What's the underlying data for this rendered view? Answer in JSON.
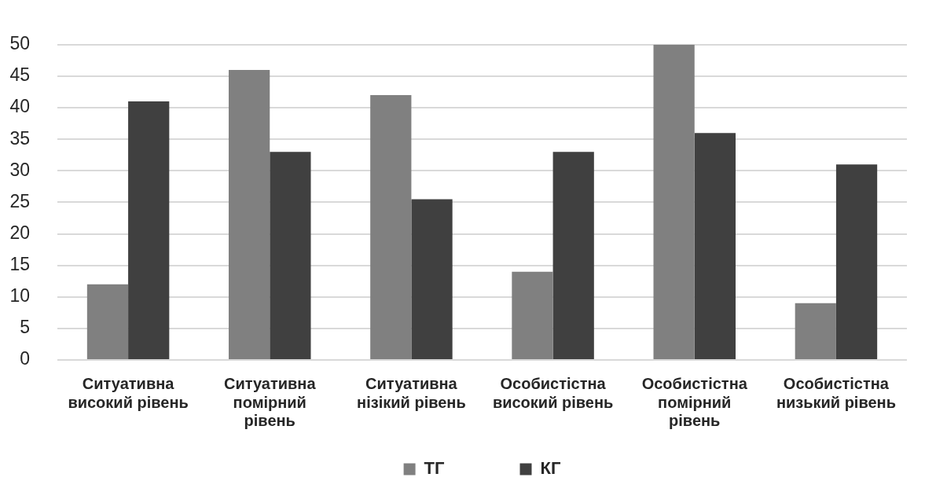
{
  "chart_data": {
    "type": "bar",
    "categories": [
      "Ситуативна високий рівень",
      "Ситуативна помірний рівень",
      "Ситуативна нізікий рівень",
      "Особистістна високий рівень",
      "Особистістна помірний рівень",
      "Особистістна низький рівень"
    ],
    "series": [
      {
        "name": "ТГ",
        "color": "#808080",
        "values": [
          12,
          46,
          42,
          14,
          50,
          9
        ]
      },
      {
        "name": "КГ",
        "color": "#404040",
        "values": [
          41,
          33,
          25.5,
          33,
          36,
          31
        ]
      }
    ],
    "ylim": [
      0,
      50
    ],
    "yticks": [
      0,
      5,
      10,
      15,
      20,
      25,
      30,
      35,
      40,
      45,
      50
    ],
    "grid": "y",
    "legend": "bottom"
  }
}
